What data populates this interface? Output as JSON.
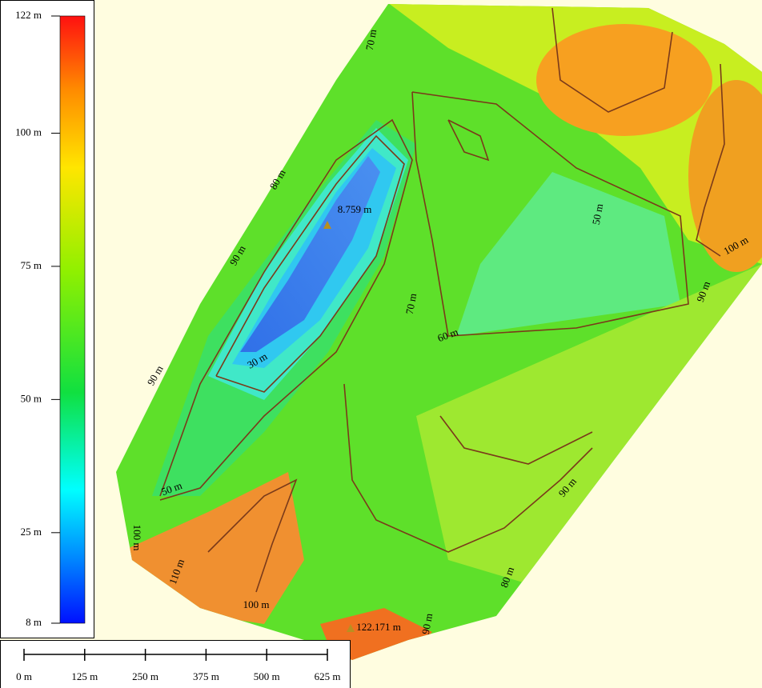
{
  "legend": {
    "ticks": [
      {
        "value": 122,
        "label": "122 m"
      },
      {
        "value": 100,
        "label": "100 m"
      },
      {
        "value": 75,
        "label": "75 m"
      },
      {
        "value": 50,
        "label": "50 m"
      },
      {
        "value": 25,
        "label": "25 m"
      },
      {
        "value": 8,
        "label": "8 m"
      }
    ]
  },
  "scale_bar": {
    "ticks": [
      {
        "value": 0,
        "label": "0 m"
      },
      {
        "value": 125,
        "label": "125 m"
      },
      {
        "value": 250,
        "label": "250 m"
      },
      {
        "value": 375,
        "label": "375 m"
      },
      {
        "value": 500,
        "label": "500 m"
      },
      {
        "value": 625,
        "label": "625 m"
      }
    ]
  },
  "contour_labels": [
    "70 m",
    "80 m",
    "90 m",
    "90 m",
    "50 m",
    "70 m",
    "60 m",
    "30 m",
    "50 m",
    "100 m",
    "110 m",
    "100 m",
    "90 m",
    "100 m",
    "90 m",
    "80 m",
    "90 m"
  ],
  "spot_heights": [
    "8.759 m",
    "122.171 m"
  ]
}
